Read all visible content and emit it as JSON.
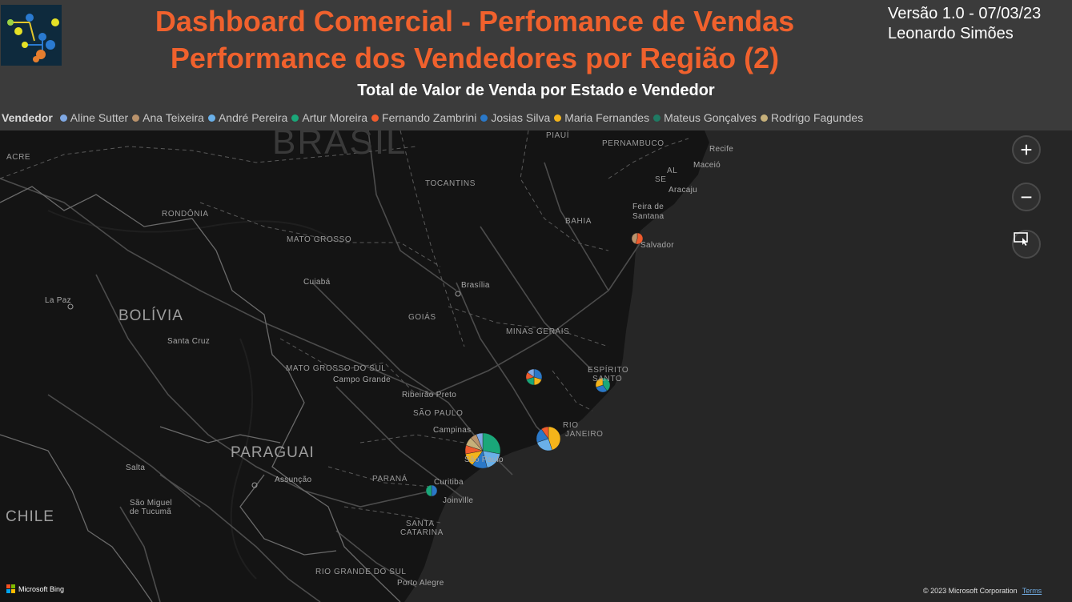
{
  "header": {
    "title_line1": "Dashboard Comercial - Perfomance de Vendas",
    "title_line2": "Performance dos Vendedores por Região (2)",
    "version": "Versão 1.0 - 07/03/23",
    "author": "Leonardo Simões",
    "subtitle": "Total de Valor de Venda por Estado e Vendedor"
  },
  "legend": {
    "title": "Vendedor",
    "items": [
      {
        "label": "Aline Sutter",
        "color": "#7fa8e3"
      },
      {
        "label": "Ana Teixeira",
        "color": "#b9926b"
      },
      {
        "label": "André Pereira",
        "color": "#6ab0e8"
      },
      {
        "label": "Artur Moreira",
        "color": "#1aa779"
      },
      {
        "label": "Fernando Zambrini",
        "color": "#ef5b2d"
      },
      {
        "label": "Josias Silva",
        "color": "#2a78c8"
      },
      {
        "label": "Maria Fernandes",
        "color": "#f4b41a"
      },
      {
        "label": "Mateus Gonçalves",
        "color": "#1f7a63"
      },
      {
        "label": "Rodrigo Fagundes",
        "color": "#c6b07a"
      }
    ]
  },
  "map": {
    "labels": {
      "brasil": "BRASIL",
      "bolivia": "BOLÍVIA",
      "paraguai": "PARAGUAI",
      "chile": "CHILE",
      "acre": "ACRE",
      "rondonia": "RONDÔNIA",
      "mato_grosso": "MATO GROSSO",
      "tocantins": "TOCANTINS",
      "piaui": "PIAUÍ",
      "pernambuco": "PERNAMBUCO",
      "bahia": "BAHIA",
      "goias": "GOIÁS",
      "minas_gerais": "MINAS GERAIS",
      "mato_grosso_do_sul": "MATO GROSSO DO SUL",
      "sao_paulo_state": "SÃO PAULO",
      "parana": "PARANÁ",
      "santa_catarina_1": "SANTA",
      "santa_catarina_2": "CATARINA",
      "rio_grande_do_sul": "RIO GRANDE DO SUL",
      "espirito_santo_1": "ESPÍRITO",
      "espirito_santo_2": "SANTO",
      "rio_1": "RIO",
      "rio_2": "JANEIRO",
      "al": "AL",
      "se": "SE",
      "recife": "Recife",
      "maceio": "Maceió",
      "aracaju": "Aracaju",
      "feira_1": "Feira de",
      "feira_2": "Santana",
      "salvador": "Salvador",
      "brasilia": "Brasília",
      "cuiaba": "Cuiabá",
      "la_paz": "La Paz",
      "santa_cruz": "Santa Cruz",
      "campo_grande": "Campo Grande",
      "ribeirao_preto": "Ribeirão Preto",
      "campinas": "Campinas",
      "sao_paulo_city": "São Paulo",
      "curitiba": "Curitiba",
      "joinville": "Joinville",
      "assuncao": "Assunção",
      "salta": "Salta",
      "tucuma_1": "São Miguel",
      "tucuma_2": "de Tucumã",
      "porto_alegre": "Porto Alegre"
    },
    "zoom_in": "+",
    "zoom_out": "−",
    "bing": "Microsoft Bing",
    "copyright": "© 2023 Microsoft Corporation",
    "terms": "Terms"
  },
  "pies": [
    {
      "state": "BA",
      "slices": [
        {
          "color": "#ef5b2d",
          "value": 55
        },
        {
          "color": "#b9926b",
          "value": 45
        }
      ]
    },
    {
      "state": "MG",
      "slices": [
        {
          "color": "#2a78c8",
          "value": 30
        },
        {
          "color": "#f4b41a",
          "value": 20
        },
        {
          "color": "#1aa779",
          "value": 20
        },
        {
          "color": "#ef5b2d",
          "value": 15
        },
        {
          "color": "#7fa8e3",
          "value": 15
        }
      ]
    },
    {
      "state": "ES",
      "slices": [
        {
          "color": "#1aa779",
          "value": 40
        },
        {
          "color": "#2a78c8",
          "value": 30
        },
        {
          "color": "#f4b41a",
          "value": 30
        }
      ]
    },
    {
      "state": "RJ",
      "slices": [
        {
          "color": "#f4b41a",
          "value": 45
        },
        {
          "color": "#6ab0e8",
          "value": 25
        },
        {
          "color": "#2a78c8",
          "value": 20
        },
        {
          "color": "#ef5b2d",
          "value": 10
        }
      ]
    },
    {
      "state": "SP",
      "slices": [
        {
          "color": "#1aa779",
          "value": 28
        },
        {
          "color": "#6ab0e8",
          "value": 18
        },
        {
          "color": "#2a78c8",
          "value": 14
        },
        {
          "color": "#f4b41a",
          "value": 12
        },
        {
          "color": "#ef5b2d",
          "value": 8
        },
        {
          "color": "#c6b07a",
          "value": 8
        },
        {
          "color": "#b9926b",
          "value": 6
        },
        {
          "color": "#7fa8e3",
          "value": 6
        }
      ]
    },
    {
      "state": "PR",
      "slices": [
        {
          "color": "#2a78c8",
          "value": 50
        },
        {
          "color": "#1aa779",
          "value": 50
        }
      ]
    }
  ]
}
